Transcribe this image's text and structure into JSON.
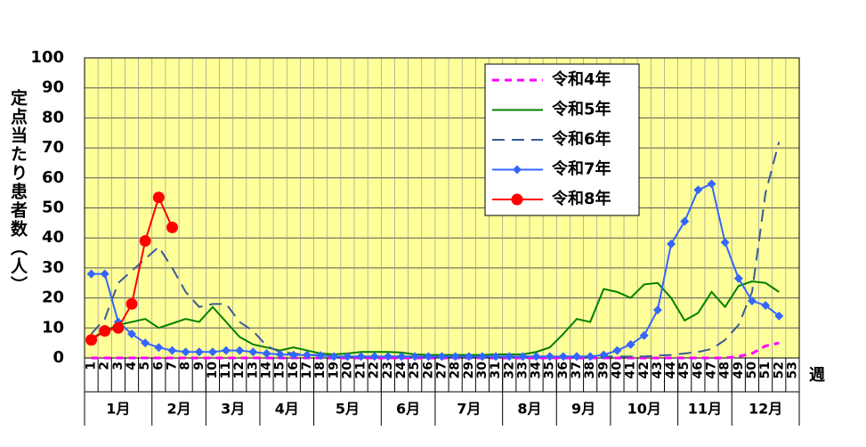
{
  "chart_data": {
    "type": "line",
    "y_label": "定点当たり患者数（人）",
    "x_unit": "週",
    "categories": [
      "1",
      "2",
      "3",
      "4",
      "5",
      "6",
      "7",
      "8",
      "9",
      "10",
      "11",
      "12",
      "13",
      "14",
      "15",
      "16",
      "17",
      "18",
      "19",
      "20",
      "21",
      "22",
      "23",
      "24",
      "25",
      "26",
      "27",
      "28",
      "29",
      "30",
      "31",
      "32",
      "33",
      "34",
      "35",
      "36",
      "37",
      "38",
      "39",
      "40",
      "41",
      "42",
      "43",
      "44",
      "45",
      "46",
      "47",
      "48",
      "49",
      "50",
      "51",
      "52",
      "53"
    ],
    "months": [
      {
        "label": "1月",
        "weeks": 5
      },
      {
        "label": "2月",
        "weeks": 4
      },
      {
        "label": "3月",
        "weeks": 4
      },
      {
        "label": "4月",
        "weeks": 4
      },
      {
        "label": "5月",
        "weeks": 5
      },
      {
        "label": "6月",
        "weeks": 4
      },
      {
        "label": "7月",
        "weeks": 5
      },
      {
        "label": "8月",
        "weeks": 4
      },
      {
        "label": "9月",
        "weeks": 4
      },
      {
        "label": "10月",
        "weeks": 5
      },
      {
        "label": "11月",
        "weeks": 4
      },
      {
        "label": "12月",
        "weeks": 5
      }
    ],
    "ylim": [
      0,
      100
    ],
    "yticks": [
      0,
      10,
      20,
      30,
      40,
      50,
      60,
      70,
      80,
      90,
      100
    ],
    "grid": true,
    "series": [
      {
        "name": "令和4年",
        "color": "#ff00ff",
        "dash": "8,6",
        "marker": null,
        "values": [
          0,
          0,
          0,
          0,
          0,
          0,
          0,
          0,
          0,
          0,
          0,
          0,
          0,
          0,
          0,
          0,
          0,
          0,
          0,
          0,
          0,
          0,
          0,
          0,
          0,
          0,
          0,
          0,
          0,
          0,
          0,
          0,
          0,
          0,
          0,
          0,
          0,
          0,
          0,
          0,
          0,
          0,
          0,
          0,
          0,
          0,
          0,
          0,
          0.5,
          1.5,
          4,
          5,
          null
        ]
      },
      {
        "name": "令和5年",
        "color": "#008000",
        "dash": null,
        "marker": null,
        "values": [
          6.5,
          9,
          11,
          12,
          13,
          10,
          11.5,
          13,
          12,
          17,
          12,
          7,
          4.5,
          3.5,
          2.5,
          3.5,
          2.5,
          1.5,
          1.2,
          1.5,
          2,
          2,
          2,
          1.8,
          1.2,
          1,
          1,
          1,
          1,
          1,
          1.2,
          1.2,
          1.2,
          2,
          3.5,
          8,
          13,
          12,
          23,
          22,
          20,
          24.5,
          25,
          20,
          12.5,
          15,
          22,
          17,
          24,
          25.5,
          25,
          22,
          null
        ]
      },
      {
        "name": "令和6年",
        "color": "#3a5a96",
        "dash": "14,8",
        "marker": null,
        "values": [
          8,
          13,
          25,
          29,
          33,
          37,
          30,
          22,
          17,
          18,
          18,
          12,
          9,
          4,
          2,
          1.5,
          1,
          1,
          0.5,
          0.5,
          0.5,
          0.5,
          0.5,
          0.5,
          0.5,
          0.5,
          0.5,
          0.5,
          0.5,
          0.5,
          0.5,
          0.5,
          0.5,
          0.5,
          0.5,
          0.5,
          0.5,
          0.5,
          0.5,
          0.5,
          0.5,
          0.5,
          0.8,
          1,
          1.5,
          2,
          3,
          6,
          11,
          22,
          55,
          72,
          null
        ]
      },
      {
        "name": "令和7年",
        "color": "#3366ff",
        "dash": null,
        "marker": "diamond",
        "values": [
          28,
          28,
          12,
          8,
          5,
          3.5,
          2.5,
          2,
          2,
          2,
          2.5,
          2.5,
          2,
          1.5,
          1.2,
          1,
          1,
          0.8,
          0.5,
          0.5,
          0.5,
          0.5,
          0.5,
          0.5,
          0.5,
          0.5,
          0.5,
          0.5,
          0.5,
          0.5,
          0.5,
          0.5,
          0.5,
          0.5,
          0.5,
          0.5,
          0.5,
          0.5,
          1,
          2.5,
          4.5,
          7.5,
          16,
          38,
          45.5,
          56,
          58,
          38.5,
          26.5,
          19,
          17.5,
          14,
          null
        ]
      },
      {
        "name": "令和8年",
        "color": "#ff0000",
        "dash": null,
        "marker": "circle",
        "values": [
          6,
          9,
          10,
          18,
          39,
          53.5,
          43.5,
          null,
          null,
          null,
          null,
          null,
          null,
          null,
          null,
          null,
          null,
          null,
          null,
          null,
          null,
          null,
          null,
          null,
          null,
          null,
          null,
          null,
          null,
          null,
          null,
          null,
          null,
          null,
          null,
          null,
          null,
          null,
          null,
          null,
          null,
          null,
          null,
          null,
          null,
          null,
          null,
          null,
          null,
          null,
          null,
          null,
          null
        ]
      }
    ]
  }
}
